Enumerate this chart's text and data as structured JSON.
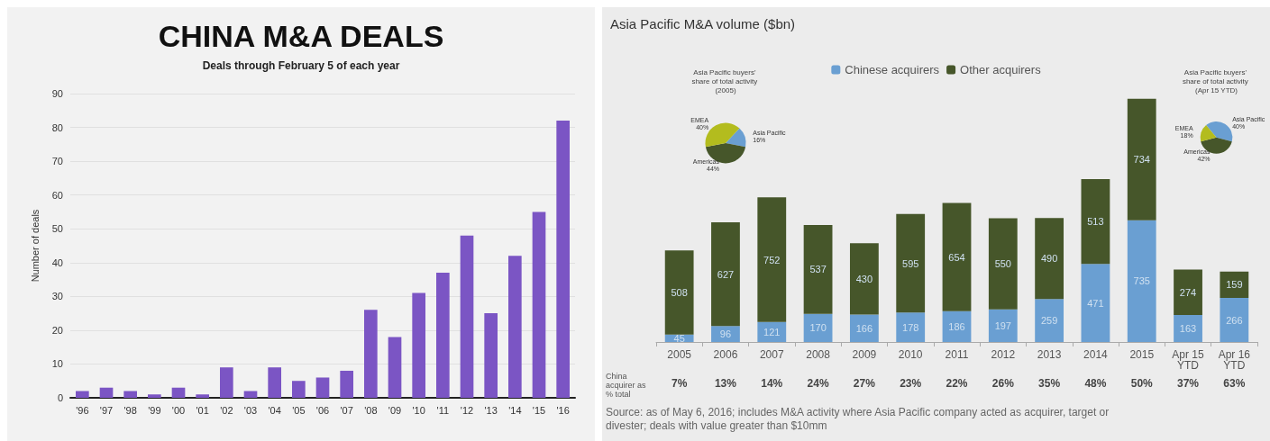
{
  "chart_data": [
    {
      "type": "bar",
      "title": "CHINA M&A DEALS",
      "subtitle": "Deals through February 5 of each year",
      "ylabel": "Number of deals",
      "categories": [
        "'96",
        "'97",
        "'98",
        "'99",
        "'00",
        "'01",
        "'02",
        "'03",
        "'04",
        "'05",
        "'06",
        "'07",
        "'08",
        "'09",
        "'10",
        "'11",
        "'12",
        "'13",
        "'14",
        "'15",
        "'16"
      ],
      "values": [
        2,
        3,
        2,
        1,
        3,
        1,
        9,
        2,
        9,
        5,
        6,
        8,
        26,
        18,
        31,
        37,
        48,
        25,
        42,
        55,
        82
      ],
      "color": "#7b55c4",
      "ylim": [
        0,
        90
      ],
      "yticks": [
        0,
        10,
        20,
        30,
        40,
        50,
        60,
        70,
        80,
        90
      ],
      "grid": "y"
    },
    {
      "type": "bar",
      "title": "Asia Pacific M&A volume ($bn)",
      "stacked": true,
      "data_labels": true,
      "legend": "top",
      "categories": [
        "2005",
        "2006",
        "2007",
        "2008",
        "2009",
        "2010",
        "2011",
        "2012",
        "2013",
        "2014",
        "2015",
        "Apr 15\nYTD",
        "Apr 16\nYTD"
      ],
      "series": [
        {
          "name": "Chinese acquirers",
          "color": "#6a9fd2",
          "values": [
            45,
            96,
            121,
            170,
            166,
            178,
            186,
            197,
            259,
            471,
            735,
            163,
            266
          ]
        },
        {
          "name": "Other acquirers",
          "color": "#46562a",
          "values": [
            508,
            627,
            752,
            537,
            430,
            595,
            654,
            550,
            490,
            513,
            734,
            274,
            159
          ]
        }
      ],
      "annotations": [
        "China acquirer as % total",
        "7%",
        "13%",
        "14%",
        "24%",
        "27%",
        "23%",
        "22%",
        "26%",
        "35%",
        "48%",
        "50%",
        "37%",
        "63%",
        "Source: as of May 6, 2016; includes M&A activity where Asia Pacific company acted as acquirer, target or divester; deals with value greater than $10mm"
      ]
    },
    {
      "type": "pie",
      "title": "Asia Pacific buyers' share of total activity (2005)",
      "categories": [
        "Asia Pacific",
        "Americas",
        "EMEA"
      ],
      "values": [
        16,
        44,
        40
      ],
      "value_labels": [
        "16%",
        "44%",
        "40%"
      ],
      "colors": [
        "#6a9fd2",
        "#46562a",
        "#b3bc1e"
      ]
    },
    {
      "type": "pie",
      "title": "Asia Pacific buyers' share of total activity (Apr 15 YTD)",
      "categories": [
        "Asia Pacific",
        "Americas",
        "EMEA"
      ],
      "values": [
        40,
        42,
        18
      ],
      "value_labels": [
        "40%",
        "42%",
        "18%"
      ],
      "colors": [
        "#6a9fd2",
        "#46562a",
        "#b3bc1e"
      ]
    }
  ]
}
